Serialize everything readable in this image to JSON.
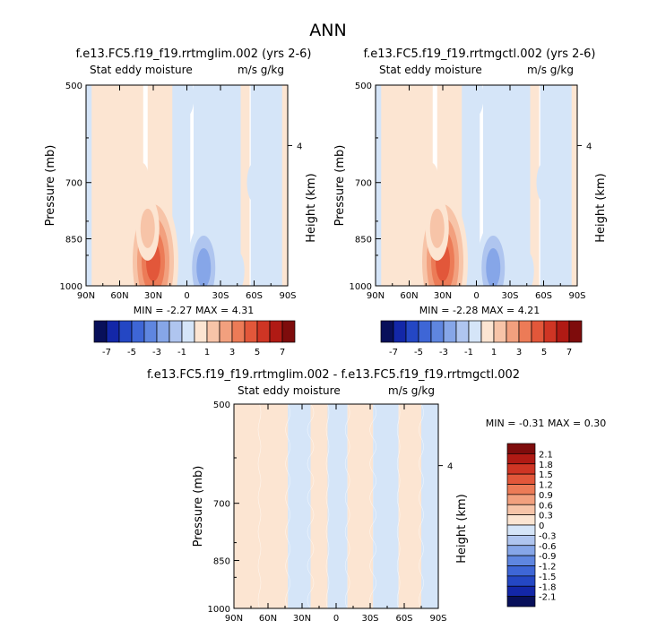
{
  "page_title": "ANN",
  "chart_data": [
    {
      "type": "heatmap",
      "panel": "left",
      "case_title": "f.e13.FC5.f19_f19.rrtmglim.002 (yrs 2-6)",
      "variable": "Stat eddy moisture",
      "units": "m/s g/kg",
      "ylabel": "Pressure (mb)",
      "y2label": "Height (km)",
      "x_ticks": [
        "90N",
        "60N",
        "30N",
        "0",
        "30S",
        "60S",
        "90S"
      ],
      "y_ticks": [
        "500",
        "700",
        "850",
        "1000"
      ],
      "y2_ticks": [
        "4"
      ],
      "xlim": [
        90,
        -90
      ],
      "ylim": [
        1000,
        500
      ],
      "min_label": "MIN =",
      "min_value": "-2.27",
      "max_label": "MAX =",
      "max_value": "4.31",
      "colorbar": {
        "tick_labels": [
          "-7",
          "-5",
          "-3",
          "-1",
          "1",
          "3",
          "5",
          "7"
        ],
        "levels": [
          -8,
          -7,
          -6,
          -5,
          -4,
          -3,
          -2,
          -1,
          0,
          1,
          2,
          3,
          4,
          5,
          6,
          7,
          8
        ],
        "colors": [
          "#08105a",
          "#1327a8",
          "#2447c4",
          "#3e66d6",
          "#5f86e0",
          "#86a6e8",
          "#afc5ef",
          "#d5e5f8",
          "#fce5d2",
          "#f7c4a8",
          "#f2a07e",
          "#ec7b57",
          "#e2573a",
          "#cf3524",
          "#b01a14",
          "#7e0c0c"
        ]
      },
      "features": [
        {
          "lat": 30,
          "p": 920,
          "value": 4.31
        },
        {
          "lat": 35,
          "p": 820,
          "value": 2.0
        },
        {
          "lat": 40,
          "p": 700,
          "value": 0.6
        },
        {
          "lat": 60,
          "p": 600,
          "value": 0.4
        },
        {
          "lat": 0,
          "p": 520,
          "value": -0.4
        },
        {
          "lat": -15,
          "p": 940,
          "value": -2.27
        },
        {
          "lat": -45,
          "p": 950,
          "value": -0.7
        },
        {
          "lat": -60,
          "p": 700,
          "value": -0.5
        }
      ]
    },
    {
      "type": "heatmap",
      "panel": "right",
      "case_title": "f.e13.FC5.f19_f19.rrtmgctl.002 (yrs 2-6)",
      "variable": "Stat eddy moisture",
      "units": "m/s g/kg",
      "ylabel": "Pressure (mb)",
      "y2label": "Height (km)",
      "x_ticks": [
        "90N",
        "60N",
        "30N",
        "0",
        "30S",
        "60S",
        "90S"
      ],
      "y_ticks": [
        "500",
        "700",
        "850",
        "1000"
      ],
      "y2_ticks": [
        "4"
      ],
      "xlim": [
        90,
        -90
      ],
      "ylim": [
        1000,
        500
      ],
      "min_label": "MIN =",
      "min_value": "-2.28",
      "max_label": "MAX =",
      "max_value": "4.21",
      "colorbar": {
        "tick_labels": [
          "-7",
          "-5",
          "-3",
          "-1",
          "1",
          "3",
          "5",
          "7"
        ],
        "levels": [
          -8,
          -7,
          -6,
          -5,
          -4,
          -3,
          -2,
          -1,
          0,
          1,
          2,
          3,
          4,
          5,
          6,
          7,
          8
        ],
        "colors": [
          "#08105a",
          "#1327a8",
          "#2447c4",
          "#3e66d6",
          "#5f86e0",
          "#86a6e8",
          "#afc5ef",
          "#d5e5f8",
          "#fce5d2",
          "#f7c4a8",
          "#f2a07e",
          "#ec7b57",
          "#e2573a",
          "#cf3524",
          "#b01a14",
          "#7e0c0c"
        ]
      },
      "features": [
        {
          "lat": 30,
          "p": 920,
          "value": 4.21
        },
        {
          "lat": 35,
          "p": 820,
          "value": 2.0
        },
        {
          "lat": 40,
          "p": 700,
          "value": 0.6
        },
        {
          "lat": 60,
          "p": 600,
          "value": 0.4
        },
        {
          "lat": 0,
          "p": 520,
          "value": -0.4
        },
        {
          "lat": -15,
          "p": 940,
          "value": -2.28
        },
        {
          "lat": -45,
          "p": 950,
          "value": -0.7
        },
        {
          "lat": -60,
          "p": 700,
          "value": -0.5
        }
      ]
    },
    {
      "type": "heatmap",
      "panel": "diff",
      "case_title": "f.e13.FC5.f19_f19.rrtmglim.002 - f.e13.FC5.f19_f19.rrtmgctl.002",
      "variable": "Stat eddy moisture",
      "units": "m/s g/kg",
      "ylabel": "Pressure (mb)",
      "y2label": "Height (km)",
      "x_ticks": [
        "90N",
        "60N",
        "30N",
        "0",
        "30S",
        "60S",
        "90S"
      ],
      "y_ticks": [
        "500",
        "700",
        "850",
        "1000"
      ],
      "y2_ticks": [
        "4"
      ],
      "xlim": [
        90,
        -90
      ],
      "ylim": [
        1000,
        500
      ],
      "min_label": "MIN =",
      "min_value": "-0.31",
      "max_label": "MAX =",
      "max_value": "0.30",
      "colorbar": {
        "tick_labels": [
          "2.1",
          "1.8",
          "1.5",
          "1.2",
          "0.9",
          "0.6",
          "0.3",
          "0",
          "-0.3",
          "-0.6",
          "-0.9",
          "-1.2",
          "-1.5",
          "-1.8",
          "-2.1"
        ],
        "levels": [
          2.4,
          2.1,
          1.8,
          1.5,
          1.2,
          0.9,
          0.6,
          0.3,
          0,
          -0.3,
          -0.6,
          -0.9,
          -1.2,
          -1.5,
          -1.8,
          -2.1,
          -2.4
        ],
        "colors": [
          "#7e0c0c",
          "#b01a14",
          "#cf3524",
          "#e2573a",
          "#ec7b57",
          "#f2a07e",
          "#f7c4a8",
          "#fce5d2",
          "#d5e5f8",
          "#afc5ef",
          "#86a6e8",
          "#5f86e0",
          "#3e66d6",
          "#2447c4",
          "#1327a8",
          "#08105a"
        ]
      },
      "bands": [
        {
          "lat": 80,
          "value": 0.1
        },
        {
          "lat": 55,
          "value": 0.15
        },
        {
          "lat": 30,
          "value": -0.1
        },
        {
          "lat": 15,
          "value": 0.1
        },
        {
          "lat": 0,
          "value": -0.1
        },
        {
          "lat": -20,
          "value": 0.15
        },
        {
          "lat": -45,
          "value": -0.1
        },
        {
          "lat": -65,
          "value": 0.1
        },
        {
          "lat": -85,
          "value": -0.1
        }
      ]
    }
  ]
}
